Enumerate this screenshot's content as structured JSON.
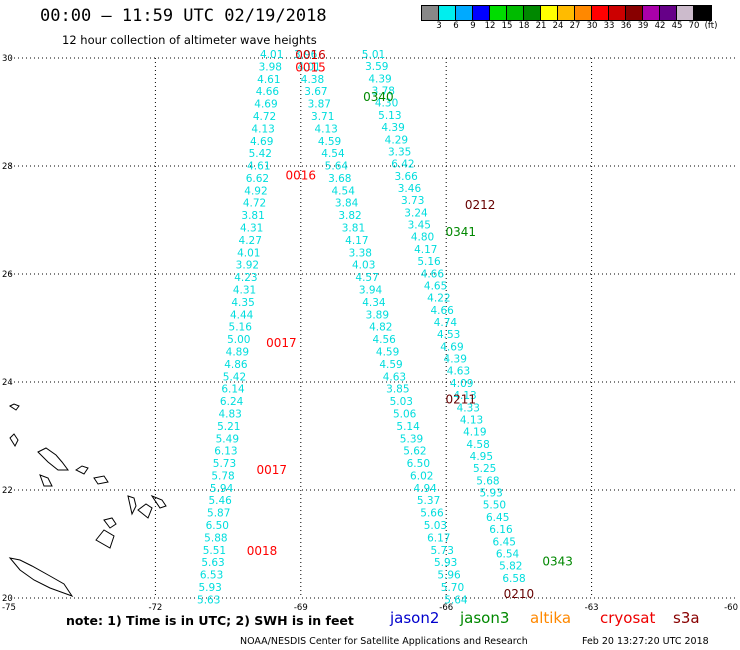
{
  "header": {
    "title": "00:00 – 11:59 UTC 02/19/2018",
    "subtitle": "12 hour collection of altimeter wave heights"
  },
  "legend": {
    "colors": [
      "#888888",
      "#00eeee",
      "#00aaff",
      "#0000ff",
      "#00dd00",
      "#00bb00",
      "#008800",
      "#ffff00",
      "#ffbb00",
      "#ff8800",
      "#ff0000",
      "#cc0000",
      "#880000",
      "#aa00aa",
      "#660088",
      "#ccbbcc",
      "#000000"
    ],
    "labels": [
      "3",
      "6",
      "9",
      "12",
      "15",
      "18",
      "21",
      "24",
      "27",
      "30",
      "33",
      "36",
      "39",
      "42",
      "45",
      "70",
      "(ft)"
    ]
  },
  "chart_data": {
    "type": "scatter",
    "xlim": [
      -75,
      -60
    ],
    "ylim": [
      20,
      30
    ],
    "grid": true,
    "x_ticks": [
      "-75",
      "-72",
      "-69",
      "-66",
      "-63",
      "-60"
    ],
    "y_ticks": [
      "30",
      "28",
      "26",
      "24",
      "22",
      "20"
    ],
    "track_a": {
      "color": "#00dddd",
      "lat_start": 30.0,
      "lat_end": 19.9,
      "lon_start": -69.6,
      "lon_end": -70.9,
      "values": [
        "4.01",
        "3.98",
        "4.61",
        "4.66",
        "4.69",
        "4.72",
        "4.13",
        "4.69",
        "5.42",
        "4.61",
        "6.62",
        "4.92",
        "4.72",
        "3.81",
        "4.31",
        "4.27",
        "4.01",
        "3.92",
        "4.23",
        "4.31",
        "4.35",
        "4.44",
        "5.16",
        "5.00",
        "4.89",
        "4.86",
        "5.42",
        "6.14",
        "6.24",
        "4.83",
        "5.21",
        "5.49",
        "6.13",
        "5.73",
        "5.78",
        "5.94",
        "5.46",
        "5.87",
        "6.50",
        "5.88",
        "5.51",
        "5.63",
        "6.53",
        "5.93",
        "5.63"
      ]
    },
    "track_b": {
      "color": "#00dddd",
      "lat_start": 30.0,
      "lat_end": 19.9,
      "lon_start": -68.9,
      "lon_end": -65.8,
      "values": [
        "3.96",
        "4.01",
        "4.38",
        "3.67",
        "3.87",
        "3.71",
        "4.13",
        "4.59",
        "4.54",
        "5.64",
        "3.68",
        "4.54",
        "3.84",
        "3.82",
        "3.81",
        "4.17",
        "3.38",
        "4.03",
        "4.57",
        "3.94",
        "4.34",
        "3.89",
        "4.82",
        "4.56",
        "4.59",
        "4.59",
        "4.63",
        "3.85",
        "5.03",
        "5.06",
        "5.14",
        "5.39",
        "5.62",
        "6.50",
        "6.02",
        "4.94",
        "5.37",
        "5.66",
        "5.03",
        "6.17",
        "5.73",
        "5.93",
        "5.96",
        "5.70",
        "5.64"
      ]
    },
    "track_c": {
      "color": "#00dddd",
      "lat_start": 30.0,
      "lat_end": 20.3,
      "lon_start": -67.5,
      "lon_end": -64.6,
      "values": [
        "5.01",
        "3.59",
        "4.39",
        "3.78",
        "4.30",
        "5.13",
        "4.39",
        "4.29",
        "3.35",
        "6.42",
        "3.66",
        "3.46",
        "3.73",
        "3.24",
        "3.45",
        "4.80",
        "4.17",
        "5.16",
        "4.66",
        "4.65",
        "4.22",
        "4.66",
        "4.74",
        "4.53",
        "4.69",
        "4.39",
        "4.63",
        "4.09",
        "4.13",
        "4.33",
        "4.13",
        "4.19",
        "4.58",
        "4.95",
        "5.25",
        "5.68",
        "5.93",
        "5.50",
        "6.45",
        "6.16",
        "6.45",
        "6.54",
        "5.82",
        "6.58"
      ]
    },
    "passes": [
      {
        "label": "0016",
        "lat": 29.98,
        "lon": -68.8,
        "color": "#cc0000"
      },
      {
        "label": "0015",
        "lat": 29.75,
        "lon": -68.8,
        "color": "#ff0000"
      },
      {
        "label": "0016",
        "lat": 27.75,
        "lon": -69.0,
        "color": "#ff0000"
      },
      {
        "label": "0017",
        "lat": 24.65,
        "lon": -69.4,
        "color": "#ff0000"
      },
      {
        "label": "0017",
        "lat": 22.3,
        "lon": -69.6,
        "color": "#ff0000"
      },
      {
        "label": "0018",
        "lat": 20.8,
        "lon": -69.8,
        "color": "#ff0000"
      },
      {
        "label": "0340",
        "lat": 29.2,
        "lon": -67.4,
        "color": "#008800"
      },
      {
        "label": "0341",
        "lat": 26.7,
        "lon": -65.7,
        "color": "#008800"
      },
      {
        "label": "0343",
        "lat": 20.6,
        "lon": -63.7,
        "color": "#008800"
      },
      {
        "label": "0212",
        "lat": 27.2,
        "lon": -65.3,
        "color": "#660000"
      },
      {
        "label": "0211",
        "lat": 23.6,
        "lon": -65.7,
        "color": "#660000"
      },
      {
        "label": "0210",
        "lat": 20.0,
        "lon": -64.5,
        "color": "#660000"
      }
    ]
  },
  "notes": {
    "note": "note: 1) Time is in UTC; 2) SWH is in feet",
    "satellites": [
      {
        "name": "jason2",
        "color": "#0000cc"
      },
      {
        "name": "jason3",
        "color": "#008800"
      },
      {
        "name": "altika",
        "color": "#ff8800"
      },
      {
        "name": "cryosat",
        "color": "#ee0000"
      },
      {
        "name": "s3a",
        "color": "#880000"
      }
    ],
    "credit": "NOAA/NESDIS Center for Satellite Applications and Research",
    "timestamp": "Feb 20 13:27:20 UTC 2018"
  }
}
